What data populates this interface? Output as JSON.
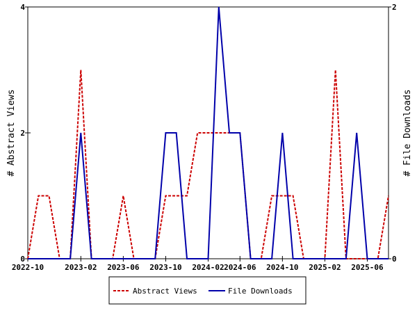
{
  "chart_data": {
    "type": "line",
    "categories": [
      "2022-10",
      null,
      null,
      null,
      null,
      "2023-02",
      null,
      null,
      null,
      "2023-06",
      null,
      null,
      null,
      "2023-10",
      null,
      null,
      null,
      "2024-02",
      null,
      null,
      "2024-06",
      null,
      null,
      null,
      "2024-10",
      null,
      null,
      null,
      "2025-02",
      null,
      null,
      null,
      "2025-06",
      null,
      null
    ],
    "series": [
      {
        "name": "Abstract Views",
        "color": "#cc0000",
        "dash": true,
        "values": [
          0,
          1,
          1,
          0,
          0,
          3,
          0,
          0,
          0,
          1,
          0,
          0,
          0,
          1,
          1,
          1,
          2,
          2,
          2,
          2,
          2,
          0,
          0,
          1,
          1,
          1,
          0,
          0,
          0,
          3,
          0,
          0,
          0,
          0,
          1
        ]
      },
      {
        "name": "File Downloads",
        "color": "#0000aa",
        "axis": "y2",
        "values": [
          0,
          0,
          0,
          0,
          0,
          1,
          0,
          0,
          0,
          0,
          0,
          0,
          0,
          1,
          1,
          0,
          0,
          0,
          2,
          1,
          1,
          0,
          0,
          0,
          1,
          0,
          0,
          0,
          0,
          0,
          0,
          1,
          0,
          0,
          0
        ]
      }
    ],
    "ylabel": "# Abstract Views",
    "y2label": "# File Downloads",
    "ylim": [
      0,
      4
    ],
    "yticks": [
      0,
      2,
      4
    ],
    "y2lim": [
      0,
      2
    ],
    "y2ticks": [
      0,
      2
    ]
  }
}
